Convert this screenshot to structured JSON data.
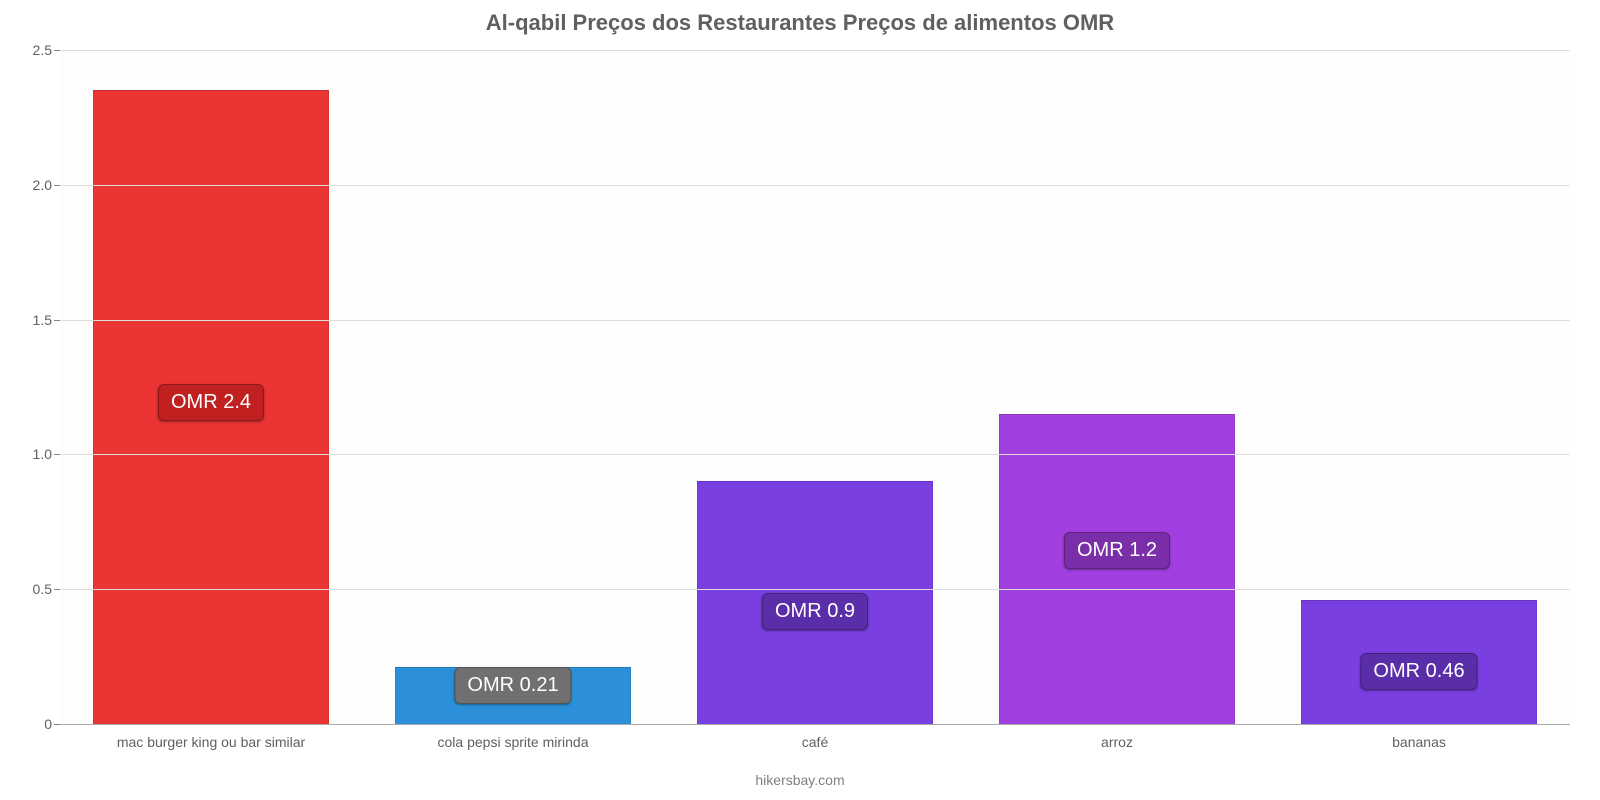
{
  "chart": {
    "type": "bar",
    "title": "Al-qabil Preços dos Restaurantes Preços de alimentos OMR",
    "title_fontsize": 22,
    "title_color": "#606060",
    "background_color": "#fdfdfd",
    "grid_color": "#dddddd",
    "axis_color": "#888888",
    "label_color": "#606060",
    "ylim": [
      0,
      2.5
    ],
    "yticks": [
      0,
      0.5,
      1.0,
      1.5,
      2.0,
      2.5
    ],
    "ytick_labels": [
      "0",
      "0.5",
      "1.0",
      "1.5",
      "2.0",
      "2.5"
    ],
    "ytick_fontsize": 14,
    "xtick_fontsize": 14,
    "bar_width_pct": 78,
    "badge_fontsize": 20,
    "categories": [
      "mac burger king ou bar similar",
      "cola pepsi sprite mirinda",
      "café",
      "arroz",
      "bananas"
    ],
    "values": [
      2.35,
      0.21,
      0.9,
      1.15,
      0.46
    ],
    "value_labels": [
      "OMR 2.4",
      "OMR 0.21",
      "OMR 0.9",
      "OMR 1.2",
      "OMR 0.46"
    ],
    "bar_colors": [
      "#eb3434",
      "#2b90d9",
      "#7a3fe0",
      "#a23fe0",
      "#7a3fe0"
    ],
    "badge_colors": [
      "#c02020",
      "#707070",
      "#5a2ea8",
      "#7a2ea8",
      "#5a2ea8"
    ],
    "badge_text_color": "#ffffff",
    "badge_offsets_pct": [
      45,
      3,
      14,
      23,
      5
    ],
    "source": "hikersbay.com",
    "source_fontsize": 14,
    "source_color": "#808080"
  }
}
